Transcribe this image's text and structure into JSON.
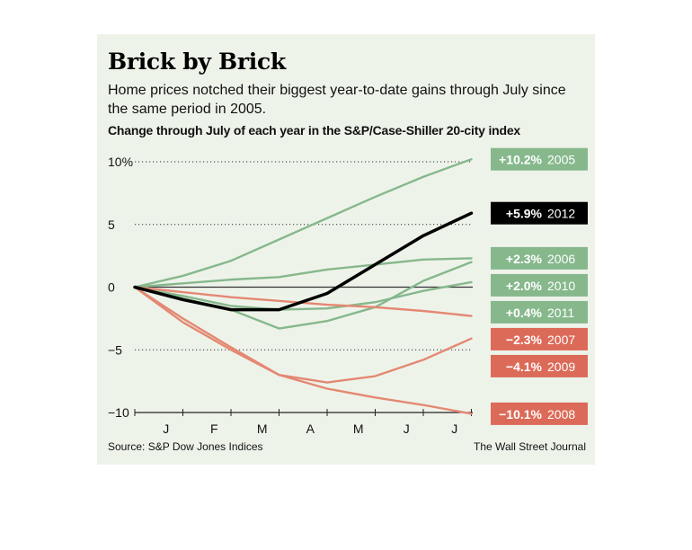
{
  "header": {
    "title": "Brick by Brick",
    "subtitle": "Home prices notched their biggest year-to-date gains through July since the same period in 2005."
  },
  "footer": {
    "source": "Source: S&P Dow Jones Indices",
    "credit": "The Wall Street Journal"
  },
  "colors": {
    "background": "#eef3ea",
    "gain": "#86b88c",
    "loss": "#e48873",
    "highlight": "#000000",
    "gain_label_bg": "#86b88c",
    "loss_label_bg": "#dc6a58"
  },
  "chart_data": {
    "type": "line",
    "title": "Change through July of each year in the S&P/Case-Shiller 20-city index",
    "xlabel": "",
    "ylabel": "",
    "x_tick_labels": [
      "J",
      "F",
      "M",
      "A",
      "M",
      "J",
      "J"
    ],
    "y_ticks": [
      10,
      5,
      0,
      -5,
      -10
    ],
    "y_tick_labels": [
      "10%",
      "5",
      "0",
      "−5",
      "−10"
    ],
    "ylim": [
      -10,
      10
    ],
    "grid": "dotted horizontal at ticks, solid zero line",
    "legend": "direct labels at right end of lines",
    "series": [
      {
        "name": "2005",
        "label": "+10.2%",
        "group": "gain",
        "highlight": false,
        "values": [
          0,
          0.9,
          2.1,
          3.8,
          5.5,
          7.2,
          8.8,
          10.2
        ]
      },
      {
        "name": "2012",
        "label": "+5.9%",
        "group": "gain",
        "highlight": true,
        "values": [
          0,
          -1.0,
          -1.8,
          -1.8,
          -0.5,
          1.8,
          4.1,
          5.9
        ]
      },
      {
        "name": "2006",
        "label": "+2.3%",
        "group": "gain",
        "highlight": false,
        "values": [
          0,
          0.3,
          0.6,
          0.8,
          1.4,
          1.8,
          2.2,
          2.3
        ]
      },
      {
        "name": "2010",
        "label": "+2.0%",
        "group": "gain",
        "highlight": false,
        "values": [
          0,
          -0.9,
          -1.8,
          -3.3,
          -2.7,
          -1.6,
          0.5,
          2.0
        ]
      },
      {
        "name": "2011",
        "label": "+0.4%",
        "group": "gain",
        "highlight": false,
        "values": [
          0,
          -0.7,
          -1.5,
          -1.8,
          -1.7,
          -1.2,
          -0.3,
          0.4
        ]
      },
      {
        "name": "2007",
        "label": "−2.3%",
        "group": "loss",
        "highlight": false,
        "values": [
          0,
          -0.4,
          -0.8,
          -1.1,
          -1.4,
          -1.6,
          -1.9,
          -2.3
        ]
      },
      {
        "name": "2009",
        "label": "−4.1%",
        "group": "loss",
        "highlight": false,
        "values": [
          0,
          -2.5,
          -4.8,
          -7.0,
          -7.6,
          -7.1,
          -5.8,
          -4.1
        ]
      },
      {
        "name": "2008",
        "label": "−10.1%",
        "group": "loss",
        "highlight": false,
        "values": [
          0,
          -2.8,
          -5.0,
          -7.0,
          -8.1,
          -8.8,
          -9.4,
          -10.1
        ]
      }
    ]
  }
}
